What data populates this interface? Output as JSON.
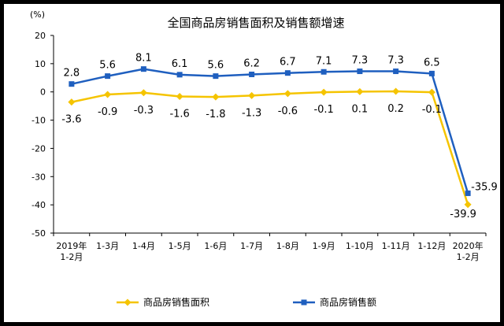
{
  "chart_data": {
    "type": "line",
    "title": "全国商品房销售面积及销售额增速",
    "unit_label": "(%)",
    "categories": [
      [
        "2019年",
        "1-2月"
      ],
      [
        "1-3月"
      ],
      [
        "1-4月"
      ],
      [
        "1-5月"
      ],
      [
        "1-6月"
      ],
      [
        "1-7月"
      ],
      [
        "1-8月"
      ],
      [
        "1-9月"
      ],
      [
        "1-10月"
      ],
      [
        "1-11月"
      ],
      [
        "1-12月"
      ],
      [
        "2020年",
        "1-2月"
      ]
    ],
    "ylim": [
      -50,
      20
    ],
    "yticks": [
      20,
      10,
      0,
      -10,
      -20,
      -30,
      -40,
      -50
    ],
    "grid": false,
    "legend_position": "bottom",
    "series": [
      {
        "name": "商品房销售面积",
        "color": "#f5c400",
        "marker": "diamond",
        "values": [
          -3.6,
          -0.9,
          -0.3,
          -1.6,
          -1.8,
          -1.3,
          -0.6,
          -0.1,
          0.1,
          0.2,
          -0.1,
          -39.9
        ],
        "labels": [
          "-3.6",
          "-0.9",
          "-0.3",
          "-1.6",
          "-1.8",
          "-1.3",
          "-0.6",
          "-0.1",
          "0.1",
          "0.2",
          "-0.1",
          "-39.9"
        ]
      },
      {
        "name": "商品房销售额",
        "color": "#1f5fbf",
        "marker": "square",
        "values": [
          2.8,
          5.6,
          8.1,
          6.1,
          5.6,
          6.2,
          6.7,
          7.1,
          7.3,
          7.3,
          6.5,
          -35.9
        ],
        "labels": [
          "2.8",
          "5.6",
          "8.1",
          "6.1",
          "5.6",
          "6.2",
          "6.7",
          "7.1",
          "7.3",
          "7.3",
          "6.5",
          "-35.9"
        ]
      }
    ]
  }
}
